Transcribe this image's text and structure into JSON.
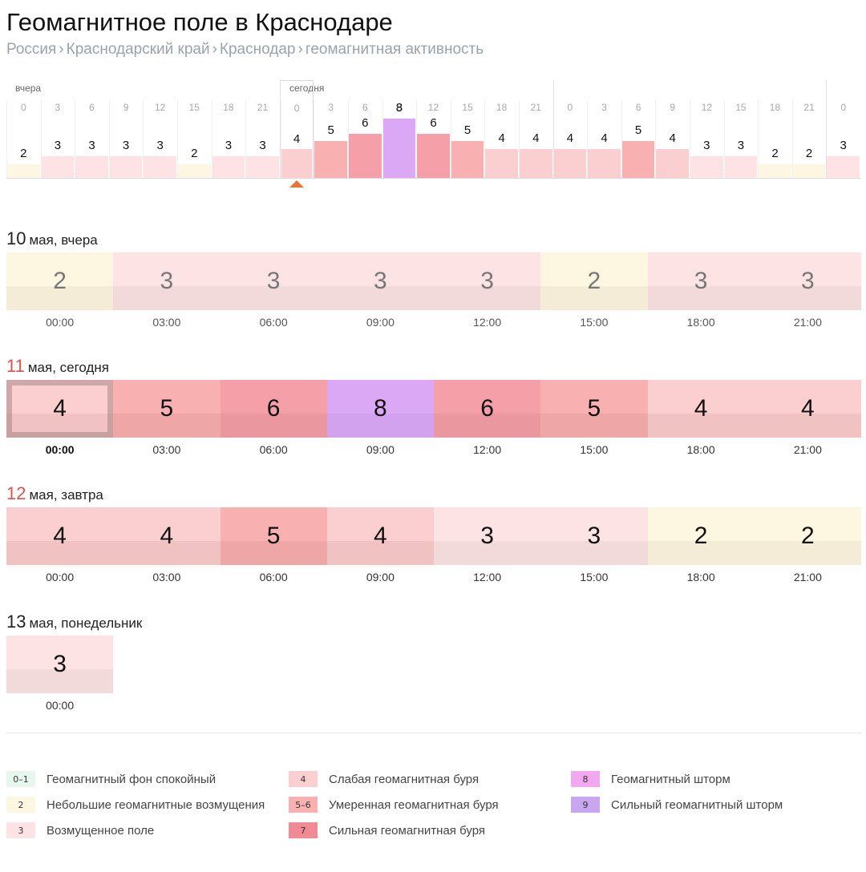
{
  "page": {
    "title": "Геомагнитное поле в Краснодаре",
    "breadcrumbs": [
      "Россия",
      "Краснодарский край",
      "Краснодар",
      "геомагнитная активность"
    ],
    "breadcrumb_separator": "›"
  },
  "strip": {
    "labels": {
      "yesterday": "вчера",
      "today": "сегодня"
    },
    "hours": [
      "0",
      "3",
      "6",
      "9",
      "12",
      "15",
      "18",
      "21",
      "0",
      "3",
      "6",
      "9",
      "12",
      "15",
      "18",
      "21",
      "0",
      "3",
      "6",
      "9",
      "12",
      "15",
      "18",
      "21",
      "0"
    ],
    "values": [
      2,
      3,
      3,
      3,
      3,
      2,
      3,
      3,
      4,
      5,
      6,
      8,
      6,
      5,
      4,
      4,
      4,
      4,
      5,
      4,
      3,
      3,
      2,
      2,
      3
    ],
    "current_index": 8
  },
  "days": [
    {
      "num": "10",
      "label": "мая, вчера",
      "red": false,
      "past": true,
      "values": [
        "2",
        "3",
        "3",
        "3",
        "3",
        "2",
        "3",
        "3"
      ],
      "times": [
        "00:00",
        "03:00",
        "06:00",
        "09:00",
        "12:00",
        "15:00",
        "18:00",
        "21:00"
      ]
    },
    {
      "num": "11",
      "label": "мая, сегодня",
      "red": true,
      "past": false,
      "values": [
        "4",
        "5",
        "6",
        "8",
        "6",
        "5",
        "4",
        "4"
      ],
      "times": [
        "00:00",
        "03:00",
        "06:00",
        "09:00",
        "12:00",
        "15:00",
        "18:00",
        "21:00"
      ],
      "selected": 0
    },
    {
      "num": "12",
      "label": "мая, завтра",
      "red": true,
      "past": false,
      "values": [
        "4",
        "4",
        "5",
        "4",
        "3",
        "3",
        "2",
        "2"
      ],
      "times": [
        "00:00",
        "03:00",
        "06:00",
        "09:00",
        "12:00",
        "15:00",
        "18:00",
        "21:00"
      ]
    },
    {
      "num": "13",
      "label": "мая, понедельник",
      "red": false,
      "past": false,
      "values": [
        "3"
      ],
      "times": [
        "00:00"
      ]
    }
  ],
  "colors": {
    "1": {
      "top": "#e8f7ee",
      "bottom": "#dcefe3"
    },
    "2": {
      "top": "#fdf6e0",
      "bottom": "#f4ecd6"
    },
    "3": {
      "top": "#fde3e3",
      "bottom": "#f3dada"
    },
    "4": {
      "top": "#fbcfcf",
      "bottom": "#f0c2c2"
    },
    "5": {
      "top": "#f9b0b0",
      "bottom": "#eea6a6"
    },
    "6": {
      "top": "#f5a0a8",
      "bottom": "#eb97a0"
    },
    "7": {
      "top": "#f08a95",
      "bottom": "#e7818c"
    },
    "8": {
      "top": "#dba8f5",
      "bottom": "#d3a2ee"
    },
    "9": {
      "top": "#c9a7f0",
      "bottom": "#c19fe8"
    }
  },
  "legend": [
    {
      "badge": "0–1",
      "text": "Геомагнитный фон спокойный",
      "color": "#e8f7ee"
    },
    {
      "badge": "2",
      "text": "Небольшие геомагнитные возмущения",
      "color": "#fdf6e0"
    },
    {
      "badge": "3",
      "text": "Возмущенное поле",
      "color": "#fde3e3"
    },
    {
      "badge": "4",
      "text": "Слабая геомагнитная буря",
      "color": "#fbcfcf"
    },
    {
      "badge": "5–6",
      "text": "Умеренная геомагнитная буря",
      "color": "#f9b0b0"
    },
    {
      "badge": "7",
      "text": "Сильная геомагнитная буря",
      "color": "#f08a95"
    },
    {
      "badge": "8",
      "text": "Геомагнитный шторм",
      "color": "#f2a8ee"
    },
    {
      "badge": "9",
      "text": "Сильный геомагнитный шторм",
      "color": "#c9a7f0"
    }
  ]
}
